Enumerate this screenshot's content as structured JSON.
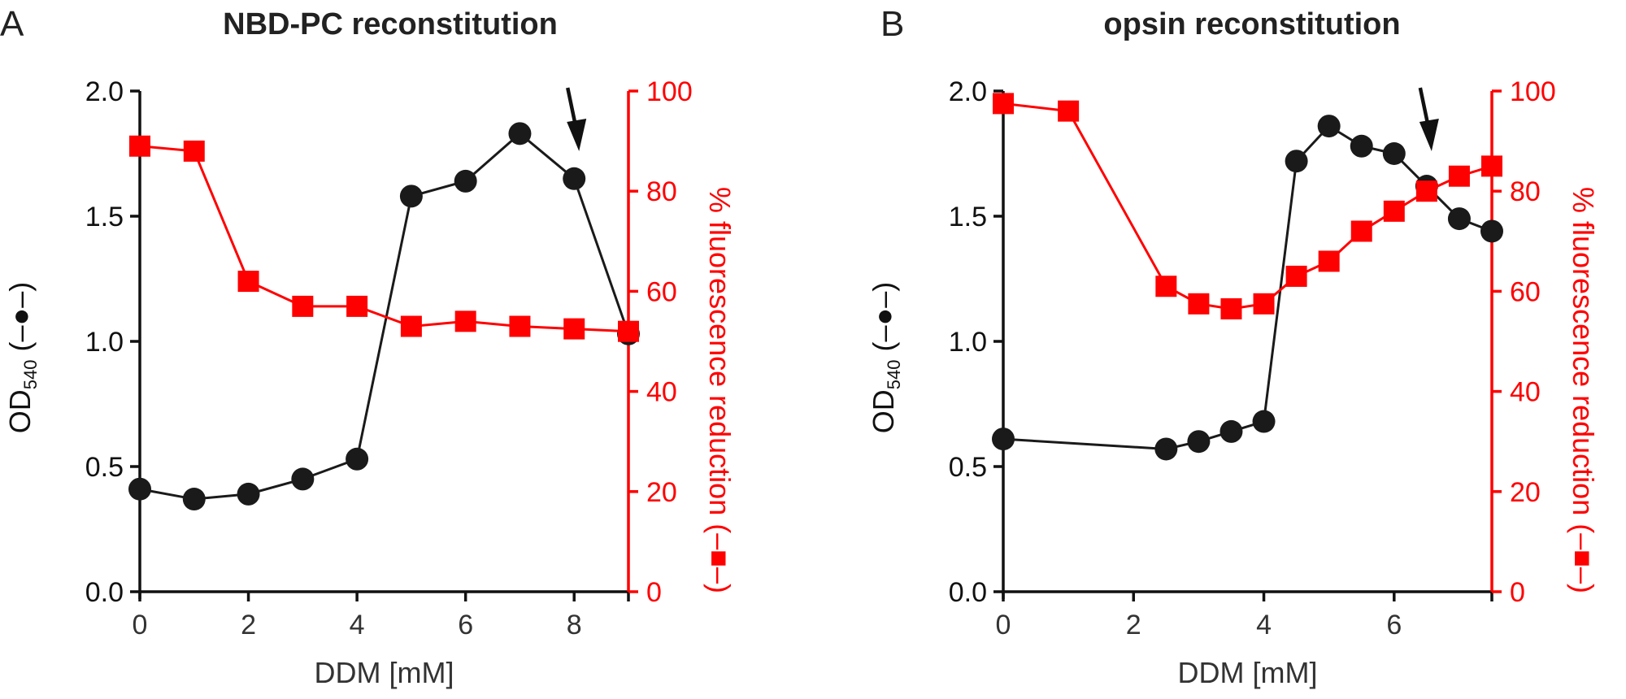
{
  "chart_data": [
    {
      "panel_label": "A",
      "type": "line",
      "title": "NBD-PC reconstitution",
      "xlabel": "DDM [mM]",
      "ylabel_left": {
        "main": "OD",
        "sub": "540",
        "suffix": " (–●–)"
      },
      "ylabel_right": "% fluorescence reduction (–■–)",
      "xlim": [
        0,
        9
      ],
      "xticks": [
        0,
        2,
        4,
        6,
        8
      ],
      "ylim_left": [
        0.0,
        2.0
      ],
      "yticks_left": [
        "0.0",
        "0.5",
        "1.0",
        "1.5",
        "2.0"
      ],
      "ylim_right": [
        0,
        100
      ],
      "yticks_right": [
        "0",
        "20",
        "40",
        "60",
        "80",
        "100"
      ],
      "arrow_x": 8,
      "series": [
        {
          "name": "OD540",
          "axis": "left",
          "marker": "circle",
          "color": "#1a1a1a",
          "x": [
            0,
            1,
            2,
            3,
            4,
            5,
            6,
            7,
            8,
            9
          ],
          "y": [
            0.41,
            0.37,
            0.39,
            0.45,
            0.53,
            1.58,
            1.64,
            1.83,
            1.65,
            1.03
          ]
        },
        {
          "name": "% fluorescence reduction",
          "axis": "right",
          "marker": "square",
          "color": "#ff0000",
          "x": [
            0,
            1,
            2,
            3,
            4,
            5,
            6,
            7,
            8,
            9
          ],
          "y": [
            89,
            88,
            62,
            57,
            57,
            53,
            54,
            53,
            52.5,
            52
          ]
        }
      ]
    },
    {
      "panel_label": "B",
      "type": "line",
      "title": "opsin reconstitution",
      "xlabel": "DDM [mM]",
      "ylabel_left": {
        "main": "OD",
        "sub": "540",
        "suffix": " (–●–)"
      },
      "ylabel_right": "% fluorescence reduction (–■–)",
      "xlim": [
        0,
        7.5
      ],
      "xticks": [
        0,
        2,
        4,
        6
      ],
      "ylim_left": [
        0.0,
        2.0
      ],
      "yticks_left": [
        "0.0",
        "0.5",
        "1.0",
        "1.5",
        "2.0"
      ],
      "ylim_right": [
        0,
        100
      ],
      "yticks_right": [
        "0",
        "20",
        "40",
        "60",
        "80",
        "100"
      ],
      "arrow_x": 6.5,
      "series": [
        {
          "name": "OD540",
          "axis": "left",
          "marker": "circle",
          "color": "#1a1a1a",
          "x": [
            0,
            2.5,
            3,
            3.5,
            4,
            4.5,
            5,
            5.5,
            6,
            6.5,
            7,
            7.5
          ],
          "y": [
            0.61,
            0.57,
            0.6,
            0.64,
            0.68,
            1.72,
            1.86,
            1.78,
            1.75,
            1.62,
            1.49,
            1.44
          ]
        },
        {
          "name": "% fluorescence reduction",
          "axis": "right",
          "marker": "square",
          "color": "#ff0000",
          "x": [
            0,
            1,
            2.5,
            3,
            3.5,
            4,
            4.5,
            5,
            5.5,
            6,
            6.5,
            7,
            7.5
          ],
          "y": [
            97.5,
            96,
            61,
            57.5,
            56.5,
            57.5,
            63,
            66,
            72,
            76,
            80,
            83,
            85
          ]
        }
      ]
    }
  ]
}
